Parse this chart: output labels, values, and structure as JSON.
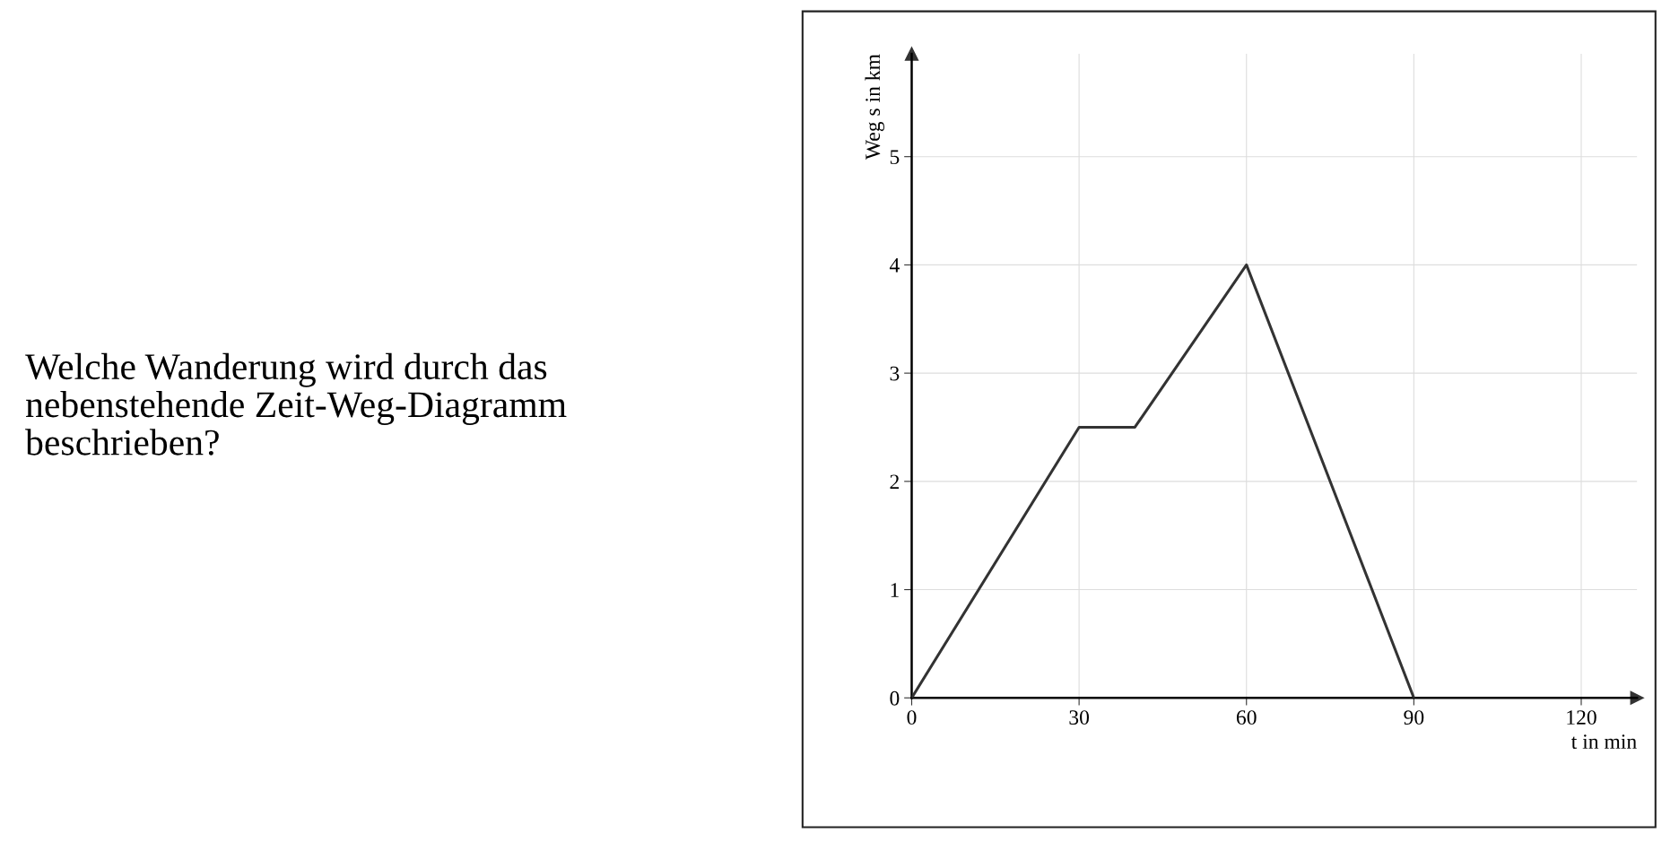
{
  "chart_data": {
    "type": "line",
    "x": [
      0,
      30,
      40,
      60,
      90
    ],
    "series": [
      {
        "color": "#333333",
        "values": [
          0,
          2.5,
          2.5,
          4,
          0
        ]
      }
    ],
    "xlim": [
      0,
      130
    ],
    "ylim": [
      0,
      5.95
    ],
    "xticks": [
      0,
      30,
      60,
      90,
      120
    ],
    "yticks": [
      0,
      1,
      2,
      3,
      4,
      5
    ],
    "xlabel": "t in min",
    "ylabel": "Weg s in km",
    "grid": true,
    "marker": "none",
    "line_style": "solid",
    "annotations": [
      "Welche Wanderung wird durch das\nnebenstehende Zeit-Weg-Diagramm\nbeschrieben?"
    ]
  }
}
